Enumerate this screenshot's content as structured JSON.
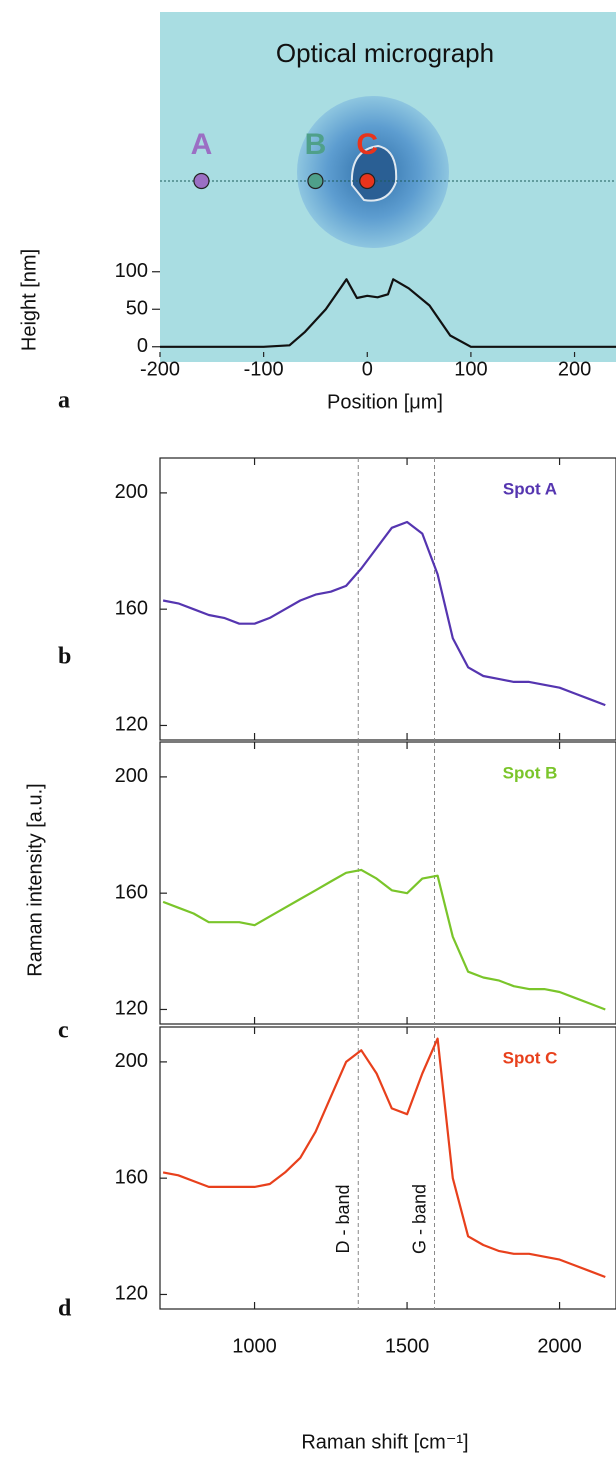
{
  "figure": {
    "y_label": "Raman intensity  [a.u.]",
    "x_label": "Raman shift  [cm⁻¹]"
  },
  "chart_data": [
    {
      "type": "line",
      "panel": "a",
      "title": "Optical micrograph",
      "xlabel": "Position  [μm]",
      "ylabel": "Height  [nm]",
      "xlim": [
        -200,
        240
      ],
      "ylim": [
        -7,
        113
      ],
      "xticks": [
        -200,
        -100,
        0,
        100,
        200
      ],
      "yticks": [
        0,
        50,
        100
      ],
      "xtick_labels": true,
      "x": [
        -200,
        -100,
        -75,
        -60,
        -40,
        -25,
        -20,
        -10,
        0,
        10,
        20,
        25,
        40,
        60,
        80,
        100,
        200,
        240
      ],
      "series": [
        {
          "color": "#111111",
          "values": [
            0,
            0,
            2,
            20,
            50,
            80,
            90,
            65,
            68,
            66,
            70,
            90,
            78,
            55,
            15,
            0,
            0,
            0
          ]
        }
      ],
      "markers": [
        {
          "label": "A",
          "x": -160,
          "color": "#9b6fc4"
        },
        {
          "label": "B",
          "x": -50,
          "color": "#4fa08a"
        },
        {
          "label": "C",
          "x": 0,
          "color": "#e8341c"
        }
      ]
    },
    {
      "type": "line",
      "panel": "b",
      "title": "Spot A",
      "xlim": [
        690,
        2185
      ],
      "ylim": [
        115,
        212
      ],
      "xticks": [
        1000,
        1500,
        2000
      ],
      "yticks": [
        120,
        160,
        200
      ],
      "vlines": [
        1340,
        1590
      ],
      "x": [
        700,
        750,
        800,
        850,
        900,
        950,
        1000,
        1050,
        1100,
        1150,
        1200,
        1250,
        1300,
        1350,
        1400,
        1450,
        1500,
        1550,
        1600,
        1650,
        1700,
        1750,
        1800,
        1850,
        1900,
        1950,
        2000,
        2050,
        2100,
        2150
      ],
      "series": [
        {
          "color": "#5535b0",
          "values": [
            163,
            162,
            160,
            158,
            157,
            155,
            155,
            157,
            160,
            163,
            165,
            166,
            168,
            174,
            181,
            188,
            190,
            186,
            172,
            150,
            140,
            137,
            136,
            135,
            135,
            134,
            133,
            131,
            129,
            127
          ]
        }
      ]
    },
    {
      "type": "line",
      "panel": "c",
      "title": "Spot B",
      "xlim": [
        690,
        2185
      ],
      "ylim": [
        115,
        212
      ],
      "xticks": [
        1000,
        1500,
        2000
      ],
      "yticks": [
        120,
        160,
        200
      ],
      "vlines": [
        1340,
        1590
      ],
      "x": [
        700,
        750,
        800,
        850,
        900,
        950,
        1000,
        1050,
        1100,
        1150,
        1200,
        1250,
        1300,
        1350,
        1400,
        1450,
        1500,
        1550,
        1600,
        1650,
        1700,
        1750,
        1800,
        1850,
        1900,
        1950,
        2000,
        2050,
        2100,
        2150
      ],
      "series": [
        {
          "color": "#7ac52a",
          "values": [
            157,
            155,
            153,
            150,
            150,
            150,
            149,
            152,
            155,
            158,
            161,
            164,
            167,
            168,
            165,
            161,
            160,
            165,
            166,
            145,
            133,
            131,
            130,
            128,
            127,
            127,
            126,
            124,
            122,
            120
          ]
        }
      ]
    },
    {
      "type": "line",
      "panel": "d",
      "title": "Spot C",
      "xlim": [
        690,
        2185
      ],
      "ylim": [
        115,
        212
      ],
      "xticks": [
        1000,
        1500,
        2000
      ],
      "yticks": [
        120,
        160,
        200
      ],
      "vlines": [
        1340,
        1590
      ],
      "xtick_labels": true,
      "x": [
        700,
        750,
        800,
        850,
        900,
        950,
        1000,
        1050,
        1100,
        1150,
        1200,
        1250,
        1300,
        1350,
        1400,
        1450,
        1500,
        1550,
        1600,
        1650,
        1700,
        1750,
        1800,
        1850,
        1900,
        1950,
        2000,
        2050,
        2100,
        2150
      ],
      "series": [
        {
          "color": "#e8401c",
          "values": [
            162,
            161,
            159,
            157,
            157,
            157,
            157,
            158,
            162,
            167,
            176,
            188,
            200,
            204,
            196,
            184,
            182,
            196,
            208,
            160,
            140,
            137,
            135,
            134,
            134,
            133,
            132,
            130,
            128,
            126
          ]
        }
      ],
      "annotations": [
        {
          "text": "D - band",
          "x": 1340
        },
        {
          "text": "G - band",
          "x": 1590
        }
      ]
    }
  ]
}
